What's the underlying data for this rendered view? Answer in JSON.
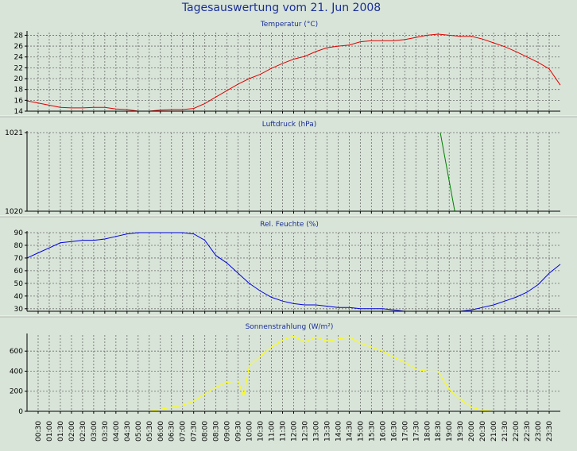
{
  "page": {
    "title": "Tagesauswertung vom 21. Jun 2008"
  },
  "chart_data": [
    {
      "type": "line",
      "title": "Temperatur (°C)",
      "color": "#e00000",
      "ylim": [
        14,
        28.5
      ],
      "yticks": [
        14,
        16,
        18,
        20,
        22,
        24,
        26,
        28
      ],
      "grid": true,
      "x": [
        0,
        0.5,
        1,
        1.5,
        2,
        2.5,
        3,
        3.5,
        4,
        4.5,
        5,
        5.5,
        6,
        6.5,
        7,
        7.5,
        8,
        8.5,
        9,
        9.5,
        10,
        10.5,
        11,
        11.5,
        12,
        12.5,
        13,
        13.5,
        14,
        14.5,
        15,
        15.5,
        16,
        16.5,
        17,
        17.5,
        18,
        18.5,
        19,
        19.5,
        20,
        20.5,
        21,
        21.5,
        22,
        22.5,
        23,
        23.5,
        24
      ],
      "values": [
        15.9,
        15.5,
        15.1,
        14.7,
        14.6,
        14.6,
        14.7,
        14.7,
        14.4,
        14.3,
        14.0,
        14.0,
        14.2,
        14.3,
        14.3,
        14.5,
        15.4,
        16.6,
        17.8,
        19.0,
        20.0,
        20.8,
        21.9,
        22.8,
        23.6,
        24.1,
        25.0,
        25.7,
        26.0,
        26.2,
        26.8,
        27.0,
        27.0,
        27.0,
        27.2,
        27.6,
        28.0,
        28.2,
        28.0,
        27.8,
        27.8,
        27.3,
        26.6,
        25.9,
        25.0,
        24.0,
        23.0,
        21.8,
        18.8
      ]
    },
    {
      "type": "line",
      "title": "Luftdruck (hPa)",
      "color": "#008000",
      "ylim": [
        1020,
        1021
      ],
      "yticks": [
        1020,
        1021
      ],
      "grid": true,
      "x": [
        18.6,
        19.25
      ],
      "values": [
        1021,
        1020
      ]
    },
    {
      "type": "line",
      "title": "Rel. Feuchte (%)",
      "color": "#0000e0",
      "ylim": [
        28,
        90
      ],
      "yticks": [
        30,
        40,
        50,
        60,
        70,
        80,
        90
      ],
      "grid": true,
      "x": [
        0,
        0.5,
        1,
        1.5,
        2,
        2.5,
        3,
        3.5,
        4,
        4.5,
        5,
        5.5,
        6,
        6.5,
        7,
        7.5,
        8,
        8.5,
        9,
        9.5,
        10,
        10.5,
        11,
        11.5,
        12,
        12.5,
        13,
        13.5,
        14,
        14.5,
        15,
        15.5,
        16,
        16.5,
        17,
        17.5,
        18,
        18.5,
        19,
        19.5,
        20,
        20.5,
        21,
        21.5,
        22,
        22.5,
        23,
        23.5,
        24
      ],
      "values": [
        70,
        74,
        78,
        82,
        83,
        84,
        84,
        85,
        87,
        89,
        90,
        90,
        90,
        90,
        90,
        89,
        84,
        72,
        66,
        58,
        50,
        44,
        39,
        36,
        34,
        33,
        33,
        32,
        31,
        31,
        30,
        30,
        30,
        29,
        28,
        28,
        28,
        28,
        28,
        28,
        29,
        31,
        33,
        36,
        39,
        43,
        49,
        58,
        65
      ]
    },
    {
      "type": "line",
      "title": "Sonnenstrahlung (W/m²)",
      "color": "#ffff00",
      "ylim": [
        0,
        760
      ],
      "yticks": [
        0,
        200,
        400,
        600
      ],
      "grid": true,
      "x": [
        5.5,
        6,
        6.5,
        7,
        7.5,
        8,
        8.5,
        9,
        9.5,
        9.75,
        10,
        10.5,
        11,
        11.5,
        12,
        12.5,
        13,
        13.5,
        14,
        14.5,
        15,
        15.5,
        16,
        16.5,
        17,
        17.5,
        18,
        18.5,
        19,
        19.5,
        20,
        20.5,
        21
      ],
      "values": [
        0,
        20,
        40,
        60,
        100,
        170,
        240,
        290,
        300,
        150,
        450,
        550,
        640,
        710,
        750,
        690,
        740,
        700,
        720,
        740,
        680,
        640,
        600,
        540,
        490,
        420,
        400,
        400,
        220,
        120,
        40,
        10,
        0
      ]
    }
  ],
  "x_axis": {
    "tick_labels": [
      "00:30",
      "01:00",
      "01:30",
      "02:00",
      "02:30",
      "03:00",
      "03:30",
      "04:00",
      "04:30",
      "05:00",
      "05:30",
      "06:00",
      "06:30",
      "07:00",
      "07:30",
      "08:00",
      "08:30",
      "09:00",
      "09:30",
      "10:00",
      "10:30",
      "11:00",
      "11:30",
      "12:00",
      "12:30",
      "13:00",
      "13:30",
      "14:00",
      "14:30",
      "15:00",
      "15:30",
      "16:00",
      "16:30",
      "17:00",
      "17:30",
      "18:00",
      "18:30",
      "19:00",
      "19:30",
      "20:00",
      "20:30",
      "21:00",
      "21:30",
      "22:00",
      "22:30",
      "23:00",
      "23:30"
    ],
    "tick_hours": [
      0.5,
      1,
      1.5,
      2,
      2.5,
      3,
      3.5,
      4,
      4.5,
      5,
      5.5,
      6,
      6.5,
      7,
      7.5,
      8,
      8.5,
      9,
      9.5,
      10,
      10.5,
      11,
      11.5,
      12,
      12.5,
      13,
      13.5,
      14,
      14.5,
      15,
      15.5,
      16,
      16.5,
      17,
      17.5,
      18,
      18.5,
      19,
      19.5,
      20,
      20.5,
      21,
      21.5,
      22,
      22.5,
      23,
      23.5
    ]
  }
}
